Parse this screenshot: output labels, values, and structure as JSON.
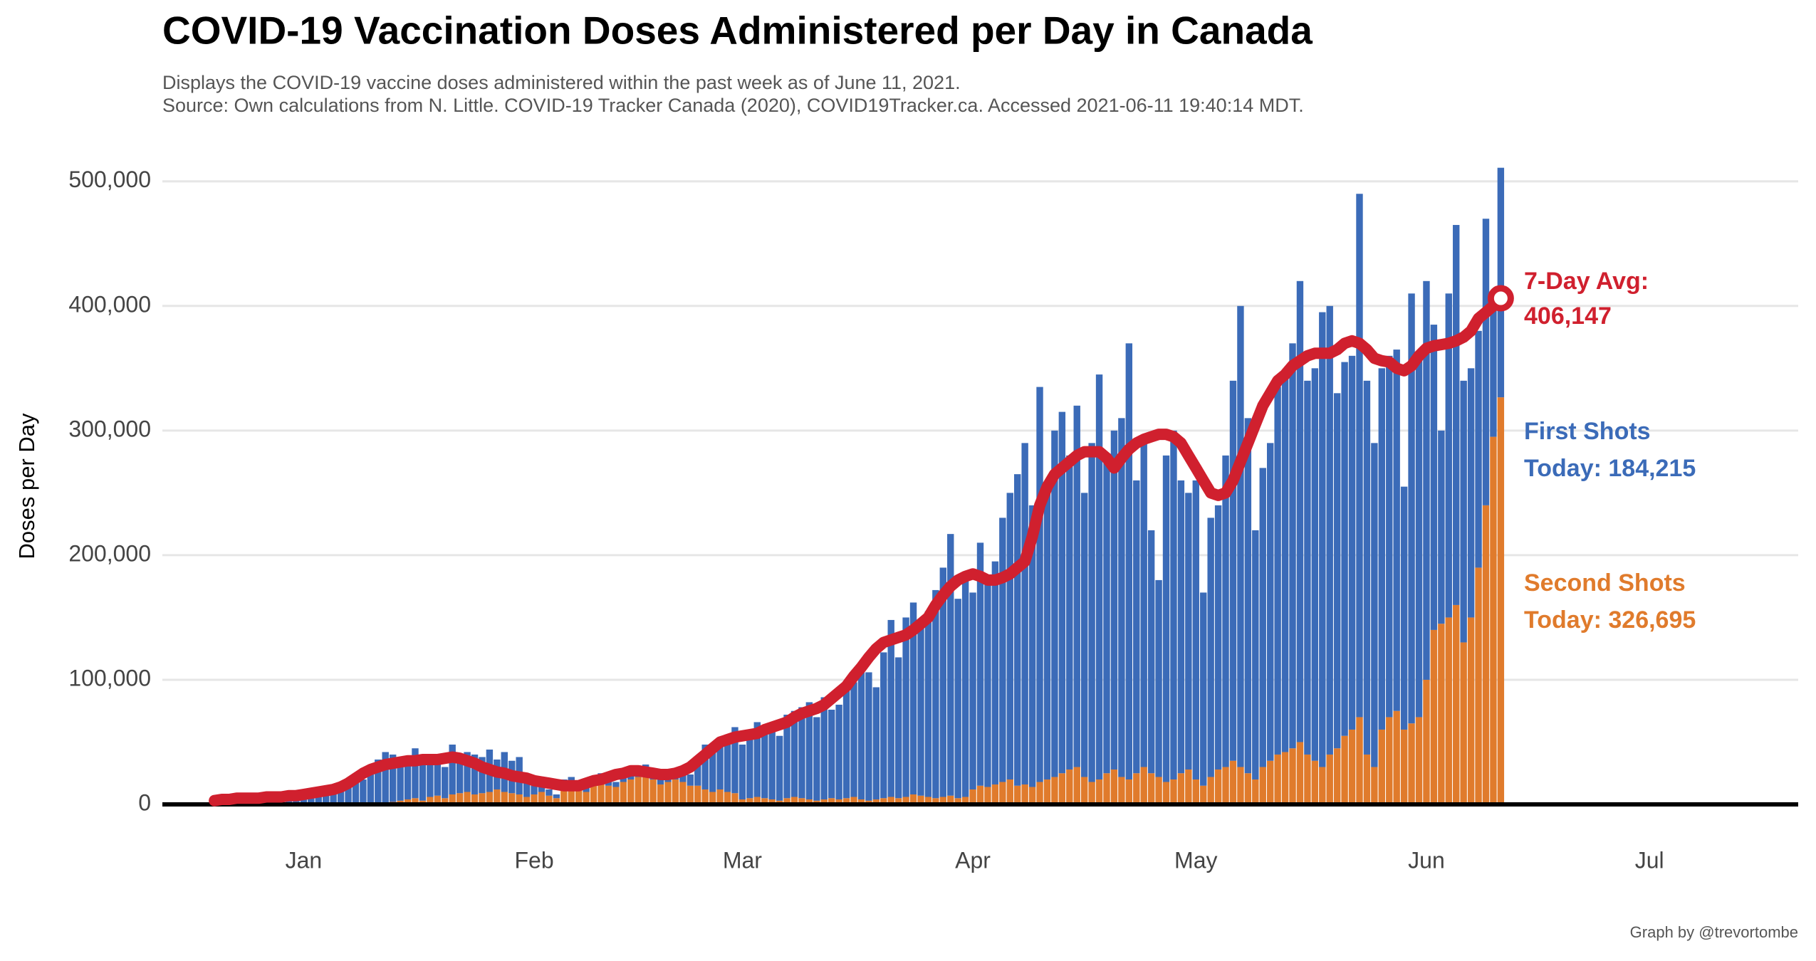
{
  "chart_data": {
    "type": "bar",
    "stacked": true,
    "title": "COVID-19 Vaccination Doses Administered per Day in Canada",
    "subtitle": [
      "Displays the COVID-19 vaccine doses administered within the past week as of June 11, 2021.",
      "Source: Own calculations from N. Little. COVID-19 Tracker Canada (2020), COVID19Tracker.ca. Accessed 2021-06-11 19:40:14 MDT."
    ],
    "y_label": "Doses per Day",
    "caption": "Graph by @trevortombe",
    "xlim": [
      -19,
      201
    ],
    "xticks": [
      {
        "value": 0,
        "label": "Jan"
      },
      {
        "value": 31,
        "label": "Feb"
      },
      {
        "value": 59,
        "label": "Mar"
      },
      {
        "value": 90,
        "label": "Apr"
      },
      {
        "value": 120,
        "label": "May"
      },
      {
        "value": 151,
        "label": "Jun"
      },
      {
        "value": 181,
        "label": "Jul"
      }
    ],
    "ylim": [
      0,
      525000
    ],
    "yticks": [
      {
        "value": 0,
        "label": "0"
      },
      {
        "value": 100000,
        "label": "100,000"
      },
      {
        "value": 200000,
        "label": "200,000"
      },
      {
        "value": 300000,
        "label": "300,000"
      },
      {
        "value": 400000,
        "label": "400,000"
      },
      {
        "value": 500000,
        "label": "500,000"
      }
    ],
    "grid": true,
    "x": [
      -12,
      -11,
      -10,
      -9,
      -8,
      -7,
      -6,
      -5,
      -4,
      -3,
      -2,
      -1,
      0,
      1,
      2,
      3,
      4,
      5,
      6,
      7,
      8,
      9,
      10,
      11,
      12,
      13,
      14,
      15,
      16,
      17,
      18,
      19,
      20,
      21,
      22,
      23,
      24,
      25,
      26,
      27,
      28,
      29,
      30,
      31,
      32,
      33,
      34,
      35,
      36,
      37,
      38,
      39,
      40,
      41,
      42,
      43,
      44,
      45,
      46,
      47,
      48,
      49,
      50,
      51,
      52,
      53,
      54,
      55,
      56,
      57,
      58,
      59,
      60,
      61,
      62,
      63,
      64,
      65,
      66,
      67,
      68,
      69,
      70,
      71,
      72,
      73,
      74,
      75,
      76,
      77,
      78,
      79,
      80,
      81,
      82,
      83,
      84,
      85,
      86,
      87,
      88,
      89,
      90,
      91,
      92,
      93,
      94,
      95,
      96,
      97,
      98,
      99,
      100,
      101,
      102,
      103,
      104,
      105,
      106,
      107,
      108,
      109,
      110,
      111,
      112,
      113,
      114,
      115,
      116,
      117,
      118,
      119,
      120,
      121,
      122,
      123,
      124,
      125,
      126,
      127,
      128,
      129,
      130,
      131,
      132,
      133,
      134,
      135,
      136,
      137,
      138,
      139,
      140,
      141,
      142,
      143,
      144,
      145,
      146,
      147,
      148,
      149,
      150,
      151,
      152,
      153,
      154,
      155,
      156,
      157,
      158,
      159,
      160,
      161
    ],
    "series": [
      {
        "name": "First Shots",
        "annotation": "Today: 184,215",
        "type": "bar",
        "color": "#3b6bb8",
        "values": [
          3000,
          4000,
          5000,
          6000,
          6000,
          7000,
          3000,
          4000,
          6000,
          8000,
          9000,
          8000,
          12000,
          13000,
          10000,
          9000,
          14000,
          12000,
          14000,
          24000,
          20000,
          28000,
          35000,
          41000,
          38000,
          30000,
          34000,
          40000,
          35000,
          34000,
          29000,
          25000,
          40000,
          27000,
          32000,
          32000,
          29000,
          34000,
          24000,
          32000,
          26000,
          30000,
          16000,
          7000,
          8000,
          5000,
          3000,
          8000,
          7000,
          6000,
          5000,
          7000,
          7000,
          5000,
          4000,
          6000,
          8000,
          8000,
          8000,
          6000,
          6000,
          7000,
          8000,
          12000,
          9000,
          20000,
          36000,
          32000,
          38000,
          45000,
          53000,
          44000,
          50000,
          60000,
          53000,
          56000,
          52000,
          67000,
          69000,
          73000,
          78000,
          67000,
          82000,
          71000,
          76000,
          87000,
          92000,
          106000,
          103000,
          90000,
          117000,
          142000,
          113000,
          144000,
          154000,
          141000,
          149000,
          167000,
          184000,
          210000,
          160000,
          179000,
          158000,
          195000,
          166000,
          179000,
          212000,
          230000,
          250000,
          274000,
          226000,
          317000,
          235000,
          278000,
          290000,
          252000,
          290000,
          228000,
          272000,
          325000,
          255000,
          272000,
          288000,
          350000,
          235000,
          260000,
          195000,
          158000,
          262000,
          280000,
          235000,
          222000,
          240000,
          155000,
          208000,
          212000,
          250000,
          305000,
          370000,
          285000,
          200000,
          240000,
          255000,
          295000,
          303000,
          325000,
          370000,
          300000,
          315000,
          365000,
          360000,
          285000,
          300000,
          300000,
          420000,
          300000,
          260000,
          290000,
          290000,
          290000,
          195000,
          345000,
          290000,
          320000,
          245000,
          155000,
          260000,
          305000,
          210000,
          200000,
          190000,
          230000,
          115000,
          184215
        ]
      },
      {
        "name": "Second Shots",
        "annotation": "Today: 326,695",
        "type": "bar",
        "color": "#e07b2c",
        "values": [
          0,
          0,
          0,
          0,
          0,
          0,
          0,
          0,
          0,
          0,
          0,
          0,
          0,
          0,
          0,
          0,
          0,
          0,
          0,
          0,
          0,
          0,
          1000,
          1000,
          2000,
          3000,
          4000,
          5000,
          3000,
          6000,
          7000,
          5000,
          8000,
          9000,
          10000,
          8000,
          9000,
          10000,
          12000,
          10000,
          9000,
          8000,
          6000,
          8000,
          10000,
          7000,
          5000,
          12000,
          15000,
          12000,
          10000,
          15000,
          18000,
          15000,
          14000,
          18000,
          20000,
          22000,
          24000,
          20000,
          16000,
          18000,
          20000,
          18000,
          15000,
          15000,
          12000,
          10000,
          12000,
          10000,
          9000,
          4000,
          5000,
          6000,
          5000,
          4000,
          3000,
          5000,
          6000,
          5000,
          4000,
          3000,
          4000,
          5000,
          4000,
          5000,
          6000,
          4000,
          3000,
          4000,
          5000,
          6000,
          5000,
          6000,
          8000,
          7000,
          6000,
          5000,
          6000,
          7000,
          5000,
          6000,
          12000,
          15000,
          14000,
          16000,
          18000,
          20000,
          15000,
          16000,
          14000,
          18000,
          20000,
          22000,
          25000,
          28000,
          30000,
          22000,
          18000,
          20000,
          25000,
          28000,
          22000,
          20000,
          25000,
          30000,
          25000,
          22000,
          18000,
          20000,
          25000,
          28000,
          20000,
          15000,
          22000,
          28000,
          30000,
          35000,
          30000,
          25000,
          20000,
          30000,
          35000,
          40000,
          42000,
          45000,
          50000,
          40000,
          35000,
          30000,
          40000,
          45000,
          55000,
          60000,
          70000,
          40000,
          30000,
          60000,
          70000,
          75000,
          60000,
          65000,
          70000,
          100000,
          140000,
          145000,
          150000,
          160000,
          130000,
          150000,
          190000,
          240000,
          295000,
          326695
        ]
      },
      {
        "name": "7-Day Avg:",
        "annotation": "406,147",
        "type": "line",
        "color": "#d0202e",
        "values": [
          3000,
          4000,
          4000,
          5000,
          5000,
          5000,
          5000,
          6000,
          6000,
          6000,
          7000,
          7000,
          8000,
          9000,
          10000,
          11000,
          12000,
          14000,
          17000,
          21000,
          25000,
          28000,
          30000,
          32000,
          33000,
          34000,
          35000,
          35000,
          36000,
          36000,
          36000,
          37000,
          38000,
          37000,
          35000,
          33000,
          30000,
          28000,
          26000,
          25000,
          23000,
          22000,
          21000,
          19000,
          18000,
          17000,
          16000,
          15000,
          15000,
          15000,
          17000,
          19000,
          20000,
          22000,
          24000,
          25000,
          27000,
          27000,
          26000,
          25000,
          24000,
          24000,
          25000,
          27000,
          30000,
          35000,
          40000,
          45000,
          50000,
          52000,
          54000,
          55000,
          56000,
          57000,
          60000,
          62000,
          64000,
          66000,
          70000,
          73000,
          75000,
          77000,
          80000,
          85000,
          90000,
          95000,
          103000,
          110000,
          118000,
          125000,
          130000,
          132000,
          134000,
          136000,
          140000,
          145000,
          150000,
          160000,
          168000,
          175000,
          180000,
          183000,
          185000,
          183000,
          180000,
          180000,
          182000,
          185000,
          190000,
          195000,
          215000,
          240000,
          255000,
          265000,
          270000,
          275000,
          280000,
          283000,
          283000,
          283000,
          278000,
          270000,
          278000,
          285000,
          290000,
          293000,
          295000,
          297000,
          297000,
          295000,
          290000,
          280000,
          270000,
          260000,
          250000,
          248000,
          250000,
          260000,
          275000,
          290000,
          305000,
          320000,
          330000,
          340000,
          345000,
          352000,
          356000,
          360000,
          362000,
          362000,
          362000,
          365000,
          370000,
          372000,
          370000,
          365000,
          358000,
          356000,
          355000,
          350000,
          348000,
          352000,
          360000,
          366000,
          368000,
          369000,
          370000,
          372000,
          375000,
          380000,
          390000,
          395000,
          400000,
          406147
        ]
      }
    ]
  }
}
